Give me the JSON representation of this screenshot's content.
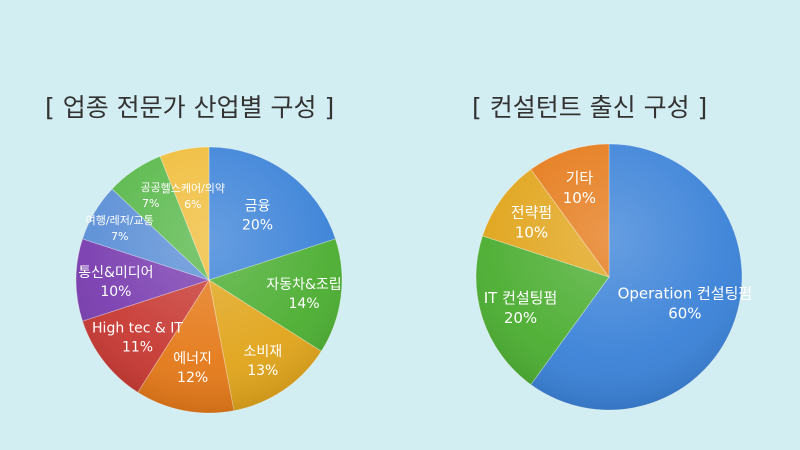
{
  "chart_data": [
    {
      "type": "pie",
      "title": "[ 업종 전문가 산업별 구성 ]",
      "slices": [
        {
          "label": "금융",
          "value": 20,
          "display": "20%",
          "color": "#3b82d8"
        },
        {
          "label": "자동차&조립",
          "value": 14,
          "display": "14%",
          "color": "#4cae32"
        },
        {
          "label": "소비재",
          "value": 13,
          "display": "13%",
          "color": "#e1a51c"
        },
        {
          "label": "에너지",
          "value": 12,
          "display": "12%",
          "color": "#e57a1a"
        },
        {
          "label": "High tec & IT",
          "value": 11,
          "display": "11%",
          "color": "#c83a34"
        },
        {
          "label": "통신&미디어",
          "value": 10,
          "display": "10%",
          "color": "#7a3eb0"
        },
        {
          "label": "여행/레저/교통",
          "value": 7,
          "display": "7%",
          "color": "#5b8fd6"
        },
        {
          "label": "공공",
          "value": 7,
          "display": "7%",
          "color": "#58b84a"
        },
        {
          "label": "헬스케어/의약",
          "value": 6,
          "display": "6%",
          "color": "#f0bd3a"
        }
      ]
    },
    {
      "type": "pie",
      "title": "[ 컨설턴트 출신 구성 ]",
      "slices": [
        {
          "label": "Operation 컨설팅펌",
          "value": 60,
          "display": "60%",
          "color": "#3b82d8"
        },
        {
          "label": "IT 컨설팅펌",
          "value": 20,
          "display": "20%",
          "color": "#4cae32"
        },
        {
          "label": "전략펌",
          "value": 10,
          "display": "10%",
          "color": "#e1a51c"
        },
        {
          "label": "기타",
          "value": 10,
          "display": "10%",
          "color": "#e57a1a"
        }
      ]
    }
  ]
}
